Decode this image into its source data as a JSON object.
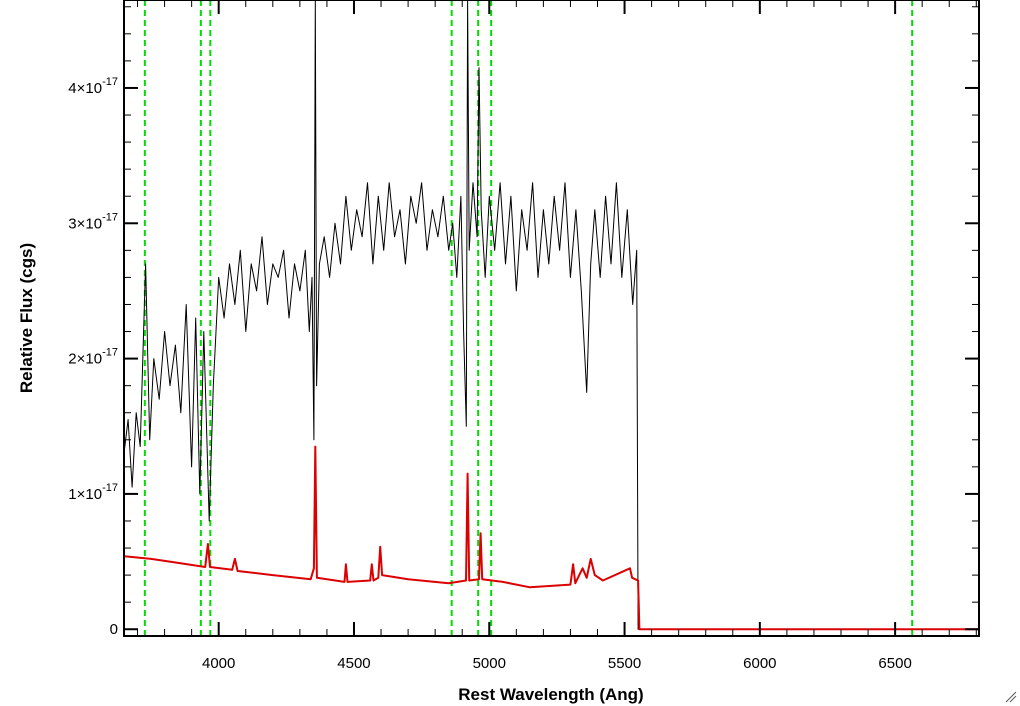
{
  "chart_data": {
    "type": "line",
    "xlabel": "Rest Wavelength (Ang)",
    "ylabel": "Relative Flux (cgs)",
    "xlim": [
      3650,
      6810
    ],
    "ylim": [
      -5e-19,
      4.65e-17
    ],
    "x_ticks": [
      {
        "value": 4000,
        "label": "4000"
      },
      {
        "value": 4500,
        "label": "4500"
      },
      {
        "value": 5000,
        "label": "5000"
      },
      {
        "value": 5500,
        "label": "5500"
      },
      {
        "value": 6000,
        "label": "6000"
      },
      {
        "value": 6500,
        "label": "6500"
      }
    ],
    "y_ticks": [
      {
        "value": 0,
        "label": "0",
        "mantissa": "",
        "exponent": ""
      },
      {
        "value": 1e-17,
        "label": "1×10-17",
        "mantissa": "1×10",
        "exponent": "-17"
      },
      {
        "value": 2e-17,
        "label": "2×10-17",
        "mantissa": "2×10",
        "exponent": "-17"
      },
      {
        "value": 3e-17,
        "label": "3×10-17",
        "mantissa": "3×10",
        "exponent": "-17"
      },
      {
        "value": 4e-17,
        "label": "4×10-17",
        "mantissa": "4×10",
        "exponent": "-17"
      }
    ],
    "vertical_lines": [
      {
        "x": 3727,
        "style": "dashed",
        "color": "#00dd00"
      },
      {
        "x": 3934,
        "style": "dashed",
        "color": "#00dd00"
      },
      {
        "x": 3969,
        "style": "dashed",
        "color": "#00dd00"
      },
      {
        "x": 4861,
        "style": "dashed",
        "color": "#00dd00"
      },
      {
        "x": 4959,
        "style": "dashed",
        "color": "#00dd00"
      },
      {
        "x": 5007,
        "style": "dashed",
        "color": "#00dd00"
      },
      {
        "x": 6563,
        "style": "dashed",
        "color": "#00dd00"
      }
    ],
    "series": [
      {
        "color": "#000000",
        "points": [
          [
            3650,
            1.3e-17
          ],
          [
            3665,
            1.55e-17
          ],
          [
            3680,
            1.05e-17
          ],
          [
            3695,
            1.6e-17
          ],
          [
            3710,
            1.35e-17
          ],
          [
            3730,
            2.7e-17
          ],
          [
            3745,
            1.4e-17
          ],
          [
            3760,
            2e-17
          ],
          [
            3780,
            1.7e-17
          ],
          [
            3800,
            2.2e-17
          ],
          [
            3820,
            1.8e-17
          ],
          [
            3840,
            2.1e-17
          ],
          [
            3860,
            1.6e-17
          ],
          [
            3880,
            2.4e-17
          ],
          [
            3900,
            1.2e-17
          ],
          [
            3915,
            2.3e-17
          ],
          [
            3930,
            1e-17
          ],
          [
            3945,
            2.2e-17
          ],
          [
            3965,
            8e-18
          ],
          [
            3980,
            1.8e-17
          ],
          [
            4000,
            2.6e-17
          ],
          [
            4020,
            2.3e-17
          ],
          [
            4040,
            2.7e-17
          ],
          [
            4060,
            2.4e-17
          ],
          [
            4080,
            2.8e-17
          ],
          [
            4100,
            2.2e-17
          ],
          [
            4120,
            2.7e-17
          ],
          [
            4140,
            2.5e-17
          ],
          [
            4160,
            2.9e-17
          ],
          [
            4180,
            2.4e-17
          ],
          [
            4200,
            2.7e-17
          ],
          [
            4220,
            2.6e-17
          ],
          [
            4240,
            2.8e-17
          ],
          [
            4260,
            2.3e-17
          ],
          [
            4280,
            2.7e-17
          ],
          [
            4300,
            2.5e-17
          ],
          [
            4320,
            2.8e-17
          ],
          [
            4335,
            2.2e-17
          ],
          [
            4345,
            2.6e-17
          ],
          [
            4352,
            1.4e-17
          ],
          [
            4357,
            4.65e-17
          ],
          [
            4362,
            1.8e-17
          ],
          [
            4372,
            2.7e-17
          ],
          [
            4390,
            2.9e-17
          ],
          [
            4410,
            2.6e-17
          ],
          [
            4430,
            3e-17
          ],
          [
            4450,
            2.7e-17
          ],
          [
            4470,
            3.2e-17
          ],
          [
            4490,
            2.8e-17
          ],
          [
            4510,
            3.1e-17
          ],
          [
            4530,
            2.9e-17
          ],
          [
            4550,
            3.3e-17
          ],
          [
            4570,
            2.7e-17
          ],
          [
            4590,
            3.2e-17
          ],
          [
            4610,
            2.8e-17
          ],
          [
            4630,
            3.3e-17
          ],
          [
            4650,
            2.9e-17
          ],
          [
            4670,
            3.1e-17
          ],
          [
            4690,
            2.7e-17
          ],
          [
            4710,
            3.2e-17
          ],
          [
            4730,
            3e-17
          ],
          [
            4750,
            3.3e-17
          ],
          [
            4770,
            2.8e-17
          ],
          [
            4790,
            3.1e-17
          ],
          [
            4810,
            2.9e-17
          ],
          [
            4830,
            3.2e-17
          ],
          [
            4850,
            2.8e-17
          ],
          [
            4865,
            3e-17
          ],
          [
            4880,
            2.6e-17
          ],
          [
            4895,
            3.2e-17
          ],
          [
            4905,
            2.2e-17
          ],
          [
            4915,
            1.5e-17
          ],
          [
            4920,
            4.65e-17
          ],
          [
            4926,
            2.8e-17
          ],
          [
            4940,
            3.3e-17
          ],
          [
            4955,
            2.9e-17
          ],
          [
            4962,
            4.15e-17
          ],
          [
            4970,
            3.1e-17
          ],
          [
            4985,
            2.6e-17
          ],
          [
            5000,
            3.2e-17
          ],
          [
            5020,
            2.8e-17
          ],
          [
            5040,
            3.3e-17
          ],
          [
            5060,
            2.7e-17
          ],
          [
            5080,
            3.2e-17
          ],
          [
            5100,
            2.5e-17
          ],
          [
            5120,
            3.1e-17
          ],
          [
            5140,
            2.8e-17
          ],
          [
            5160,
            3.3e-17
          ],
          [
            5180,
            2.6e-17
          ],
          [
            5200,
            3.1e-17
          ],
          [
            5220,
            2.7e-17
          ],
          [
            5240,
            3.2e-17
          ],
          [
            5260,
            2.8e-17
          ],
          [
            5280,
            3.3e-17
          ],
          [
            5300,
            2.6e-17
          ],
          [
            5320,
            3.1e-17
          ],
          [
            5340,
            2.5e-17
          ],
          [
            5360,
            1.75e-17
          ],
          [
            5375,
            2.7e-17
          ],
          [
            5390,
            3.1e-17
          ],
          [
            5410,
            2.6e-17
          ],
          [
            5430,
            3.2e-17
          ],
          [
            5450,
            2.7e-17
          ],
          [
            5470,
            3.3e-17
          ],
          [
            5490,
            2.6e-17
          ],
          [
            5510,
            3.1e-17
          ],
          [
            5530,
            2.4e-17
          ],
          [
            5545,
            2.8e-17
          ],
          [
            5550,
            0.0
          ],
          [
            6810,
            0.0
          ]
        ]
      },
      {
        "color": "#dd0000",
        "points": [
          [
            3650,
            5.4e-18
          ],
          [
            3750,
            5.2e-18
          ],
          [
            3850,
            4.9e-18
          ],
          [
            3950,
            4.6e-18
          ],
          [
            3960,
            6.3e-18
          ],
          [
            3968,
            4.6e-18
          ],
          [
            4050,
            4.4e-18
          ],
          [
            4060,
            5.2e-18
          ],
          [
            4070,
            4.3e-18
          ],
          [
            4200,
            4e-18
          ],
          [
            4340,
            3.7e-18
          ],
          [
            4352,
            4.5e-18
          ],
          [
            4357,
            1.35e-17
          ],
          [
            4363,
            3.8e-18
          ],
          [
            4465,
            3.5e-18
          ],
          [
            4470,
            4.8e-18
          ],
          [
            4476,
            3.5e-18
          ],
          [
            4560,
            3.6e-18
          ],
          [
            4566,
            4.8e-18
          ],
          [
            4572,
            3.6e-18
          ],
          [
            4590,
            3.8e-18
          ],
          [
            4597,
            6.1e-18
          ],
          [
            4604,
            4e-18
          ],
          [
            4700,
            3.7e-18
          ],
          [
            4850,
            3.4e-18
          ],
          [
            4914,
            3.6e-18
          ],
          [
            4920,
            1.15e-17
          ],
          [
            4926,
            3.6e-18
          ],
          [
            4962,
            3.7e-18
          ],
          [
            4968,
            7.1e-18
          ],
          [
            4974,
            3.7e-18
          ],
          [
            5050,
            3.5e-18
          ],
          [
            5150,
            3.1e-18
          ],
          [
            5300,
            3.3e-18
          ],
          [
            5310,
            4.8e-18
          ],
          [
            5318,
            3.4e-18
          ],
          [
            5345,
            4.5e-18
          ],
          [
            5360,
            3.8e-18
          ],
          [
            5375,
            5.2e-18
          ],
          [
            5390,
            4e-18
          ],
          [
            5420,
            3.6e-18
          ],
          [
            5520,
            4.5e-18
          ],
          [
            5528,
            3.8e-18
          ],
          [
            5550,
            3.6e-18
          ],
          [
            5555,
            0.0
          ],
          [
            6810,
            0.0
          ]
        ]
      }
    ]
  }
}
